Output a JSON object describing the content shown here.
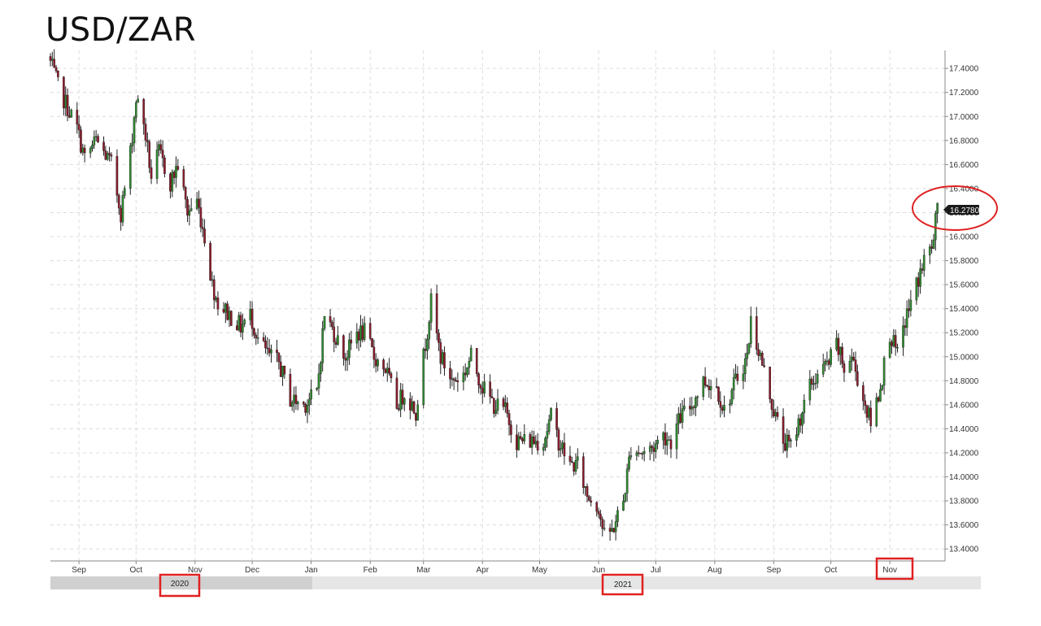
{
  "title": "USD/ZAR",
  "colors": {
    "up": "#2e8b2e",
    "down": "#8b1a2a",
    "wick": "#222222",
    "grid": "#dcdcdc",
    "highlight": "#e02020",
    "price_badge_bg": "#1a1a1a",
    "price_badge_text": "#ffffff",
    "navigator_bg": "#e6e6e6",
    "navigator_selected": "#d0d0d0"
  },
  "chart_data": {
    "type": "candlestick",
    "title": "USD/ZAR",
    "ylim": [
      13.3,
      17.55
    ],
    "y_ticks": [
      "17.4000",
      "17.2000",
      "17.0000",
      "16.8000",
      "16.6000",
      "16.4000",
      "16.2000",
      "16.0000",
      "15.8000",
      "15.6000",
      "15.4000",
      "15.2000",
      "15.0000",
      "14.8000",
      "14.6000",
      "14.4000",
      "14.2000",
      "14.0000",
      "13.8000",
      "13.6000",
      "13.4000"
    ],
    "x_ticks": [
      "Sep",
      "Oct",
      "Nov",
      "Dec",
      "Jan",
      "Feb",
      "Mar",
      "Apr",
      "May",
      "Jun",
      "Jul",
      "Aug",
      "Sep",
      "Oct",
      "Nov"
    ],
    "x_tick_months": [
      "2020-09",
      "2020-10",
      "2020-11",
      "2020-12",
      "2021-01",
      "2021-02",
      "2021-03",
      "2021-04",
      "2021-05",
      "2021-06",
      "2021-07",
      "2021-08",
      "2021-09",
      "2021-10",
      "2021-11"
    ],
    "x_range": [
      "2020-08-17",
      "2021-11-30"
    ],
    "years": [
      "2020",
      "2021"
    ],
    "last_price": "16.2780",
    "highlighted": [
      "last_price",
      "2020",
      "2021",
      "Nov"
    ],
    "close_anchors": [
      [
        "2020-08-17",
        17.45
      ],
      [
        "2020-08-21",
        17.25
      ],
      [
        "2020-08-31",
        16.9
      ],
      [
        "2020-09-04",
        16.65
      ],
      [
        "2020-09-10",
        16.8
      ],
      [
        "2020-09-18",
        16.6
      ],
      [
        "2020-09-23",
        16.2
      ],
      [
        "2020-09-28",
        16.7
      ],
      [
        "2020-10-01",
        17.15
      ],
      [
        "2020-10-05",
        16.95
      ],
      [
        "2020-10-09",
        16.5
      ],
      [
        "2020-10-13",
        16.7
      ],
      [
        "2020-10-19",
        16.45
      ],
      [
        "2020-10-23",
        16.6
      ],
      [
        "2020-10-28",
        16.2
      ],
      [
        "2020-11-02",
        16.3
      ],
      [
        "2020-11-06",
        16.0
      ],
      [
        "2020-11-10",
        15.6
      ],
      [
        "2020-11-13",
        15.45
      ],
      [
        "2020-11-19",
        15.35
      ],
      [
        "2020-11-25",
        15.25
      ],
      [
        "2020-11-30",
        15.35
      ],
      [
        "2020-12-04",
        15.15
      ],
      [
        "2020-12-10",
        15.0
      ],
      [
        "2020-12-15",
        14.95
      ],
      [
        "2020-12-21",
        14.65
      ],
      [
        "2020-12-28",
        14.6
      ],
      [
        "2021-01-04",
        14.7
      ],
      [
        "2021-01-08",
        15.35
      ],
      [
        "2021-01-13",
        15.2
      ],
      [
        "2021-01-19",
        15.0
      ],
      [
        "2021-01-25",
        15.2
      ],
      [
        "2021-01-29",
        15.2
      ],
      [
        "2021-02-03",
        15.0
      ],
      [
        "2021-02-09",
        14.9
      ],
      [
        "2021-02-15",
        14.6
      ],
      [
        "2021-02-19",
        14.7
      ],
      [
        "2021-02-25",
        14.55
      ],
      [
        "2021-03-01",
        15.0
      ],
      [
        "2021-03-05",
        15.45
      ],
      [
        "2021-03-10",
        15.0
      ],
      [
        "2021-03-16",
        14.8
      ],
      [
        "2021-03-22",
        14.85
      ],
      [
        "2021-03-26",
        15.0
      ],
      [
        "2021-04-01",
        14.75
      ],
      [
        "2021-04-07",
        14.6
      ],
      [
        "2021-04-13",
        14.55
      ],
      [
        "2021-04-19",
        14.3
      ],
      [
        "2021-04-26",
        14.3
      ],
      [
        "2021-05-03",
        14.3
      ],
      [
        "2021-05-07",
        14.5
      ],
      [
        "2021-05-11",
        14.3
      ],
      [
        "2021-05-17",
        14.1
      ],
      [
        "2021-05-21",
        14.1
      ],
      [
        "2021-05-26",
        13.85
      ],
      [
        "2021-06-01",
        13.75
      ],
      [
        "2021-06-04",
        13.5
      ],
      [
        "2021-06-08",
        13.55
      ],
      [
        "2021-06-14",
        13.8
      ],
      [
        "2021-06-18",
        14.25
      ],
      [
        "2021-06-24",
        14.2
      ],
      [
        "2021-06-30",
        14.25
      ],
      [
        "2021-07-05",
        14.35
      ],
      [
        "2021-07-09",
        14.3
      ],
      [
        "2021-07-14",
        14.5
      ],
      [
        "2021-07-20",
        14.6
      ],
      [
        "2021-07-26",
        14.8
      ],
      [
        "2021-08-02",
        14.75
      ],
      [
        "2021-08-06",
        14.55
      ],
      [
        "2021-08-12",
        14.8
      ],
      [
        "2021-08-18",
        15.0
      ],
      [
        "2021-08-20",
        15.3
      ],
      [
        "2021-08-25",
        15.0
      ],
      [
        "2021-09-01",
        14.55
      ],
      [
        "2021-09-06",
        14.3
      ],
      [
        "2021-09-10",
        14.25
      ],
      [
        "2021-09-15",
        14.5
      ],
      [
        "2021-09-20",
        14.75
      ],
      [
        "2021-09-24",
        14.85
      ],
      [
        "2021-09-30",
        14.95
      ],
      [
        "2021-10-04",
        15.1
      ],
      [
        "2021-10-08",
        14.9
      ],
      [
        "2021-10-12",
        15.0
      ],
      [
        "2021-10-18",
        14.65
      ],
      [
        "2021-10-22",
        14.45
      ],
      [
        "2021-10-27",
        14.75
      ],
      [
        "2021-11-01",
        15.2
      ],
      [
        "2021-11-05",
        15.0
      ],
      [
        "2021-11-09",
        15.3
      ],
      [
        "2021-11-15",
        15.6
      ],
      [
        "2021-11-19",
        15.8
      ],
      [
        "2021-11-24",
        15.95
      ],
      [
        "2021-11-26",
        16.278
      ]
    ]
  }
}
